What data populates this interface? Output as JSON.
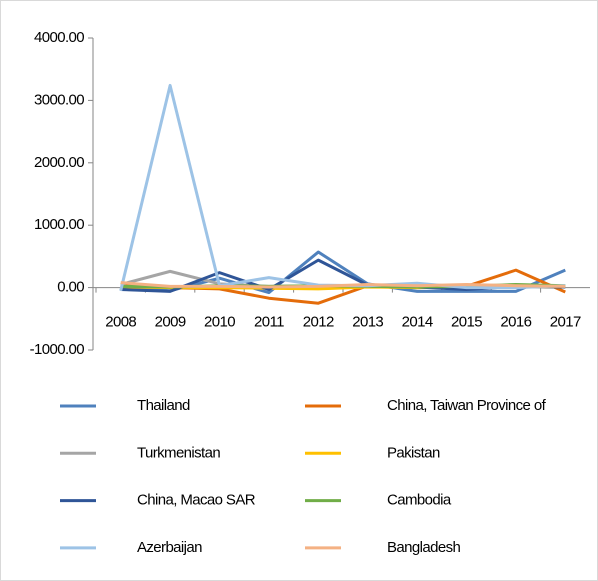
{
  "chart_data": {
    "type": "line",
    "categories": [
      "2008",
      "2009",
      "2010",
      "2011",
      "2012",
      "2013",
      "2014",
      "2015",
      "2016",
      "2017"
    ],
    "series": [
      {
        "name": "Thailand",
        "color": "#4f81bd",
        "values": [
          0,
          -50,
          150,
          -80,
          570,
          60,
          -60,
          -60,
          -60,
          280
        ]
      },
      {
        "name": "China, Taiwan Province of",
        "color": "#e46c0a",
        "values": [
          50,
          0,
          -20,
          -170,
          -250,
          30,
          0,
          20,
          280,
          -70
        ]
      },
      {
        "name": "Turkmenistan",
        "color": "#a5a5a5",
        "values": [
          50,
          260,
          60,
          20,
          30,
          20,
          20,
          10,
          20,
          10
        ]
      },
      {
        "name": "Pakistan",
        "color": "#ffc000",
        "values": [
          10,
          0,
          0,
          -10,
          -20,
          10,
          0,
          10,
          20,
          10
        ]
      },
      {
        "name": "China, Macao SAR",
        "color": "#2f5597",
        "values": [
          -30,
          -60,
          240,
          -30,
          440,
          40,
          10,
          -30,
          20,
          10
        ]
      },
      {
        "name": "Cambodia",
        "color": "#70ad47",
        "values": [
          20,
          10,
          30,
          20,
          30,
          20,
          10,
          20,
          50,
          30
        ]
      },
      {
        "name": "Azerbaijan",
        "color": "#9dc3e6",
        "values": [
          -50,
          3240,
          30,
          160,
          40,
          30,
          70,
          0,
          0,
          30
        ]
      },
      {
        "name": "Bangladesh",
        "color": "#f4b183",
        "values": [
          80,
          20,
          20,
          10,
          20,
          50,
          30,
          50,
          30,
          20
        ]
      }
    ],
    "ylim": [
      -1000,
      4000
    ],
    "yticks": [
      {
        "value": -1000,
        "label": "-1000.00"
      },
      {
        "value": 0,
        "label": "0.00"
      },
      {
        "value": 1000,
        "label": "1000.00"
      },
      {
        "value": 2000,
        "label": "2000.00"
      },
      {
        "value": 3000,
        "label": "3000.00"
      },
      {
        "value": 4000,
        "label": "4000.00"
      }
    ]
  }
}
